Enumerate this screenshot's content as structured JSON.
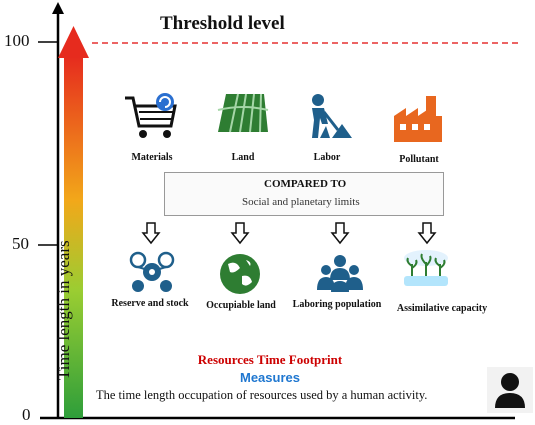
{
  "diagram": {
    "threshold_title": "Threshold level",
    "ylabel": "Time length in years",
    "ticks": [
      "100",
      "50",
      "0"
    ],
    "resources": [
      {
        "label": "Materials",
        "icon": "shopping-cart-icon"
      },
      {
        "label": "Land",
        "icon": "farmland-icon"
      },
      {
        "label": "Labor",
        "icon": "worker-shoveling-icon"
      },
      {
        "label": "Pollutant",
        "icon": "factory-icon"
      }
    ],
    "comparison": {
      "title": "COMPARED TO",
      "subtitle": "Social and planetary limits",
      "icon": "gauge-icon"
    },
    "measures": [
      {
        "label": "Reserve and stock",
        "icon": "gear-network-icon"
      },
      {
        "label": "Occupiable land",
        "icon": "globe-icon"
      },
      {
        "label": "Laboring population",
        "icon": "people-group-icon"
      },
      {
        "label": "Assimilative capacity",
        "icon": "plants-tray-icon"
      }
    ],
    "footer": {
      "title": "Resources Time Footprint",
      "subtitle": "Measures",
      "description": "The time length occupation of resources used by a human activity."
    },
    "colors": {
      "threshold_line": "#e53030",
      "title_red": "#cc0000",
      "measures_blue": "#1f77d0",
      "icon_blue": "#1f5f8b",
      "land_green": "#2e7d32",
      "factory_orange": "#e8671f"
    }
  }
}
